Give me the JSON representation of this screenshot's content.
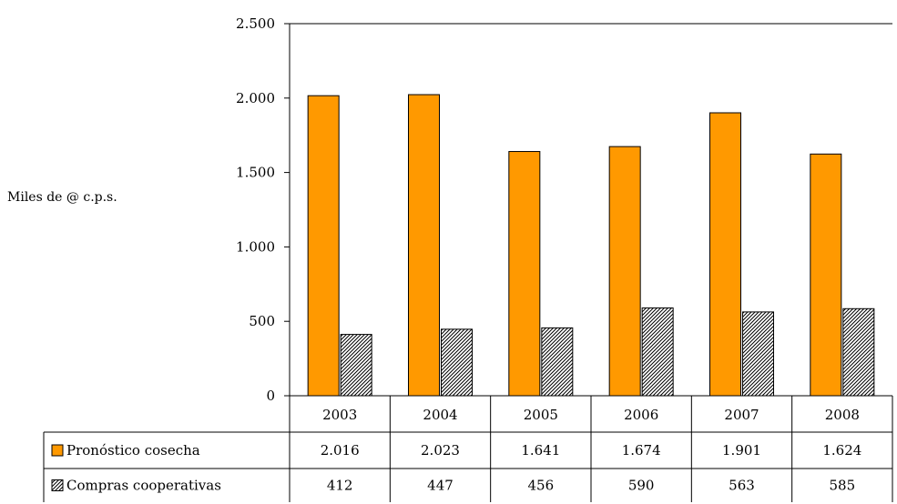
{
  "chart_data": {
    "type": "bar",
    "ylabel": "Miles de @ c.p.s.",
    "ylim": [
      0,
      2500
    ],
    "yticks": [
      0,
      500,
      1000,
      1500,
      2000,
      2500
    ],
    "ytick_labels": [
      "0",
      "500",
      "1.000",
      "1.500",
      "2.000",
      "2.500"
    ],
    "categories": [
      "2003",
      "2004",
      "2005",
      "2006",
      "2007",
      "2008"
    ],
    "grid": false,
    "legend": "data-table",
    "series": [
      {
        "name": "Pronóstico cosecha",
        "values": [
          2016,
          2023,
          1641,
          1674,
          1901,
          1624
        ],
        "labels": [
          "2.016",
          "2.023",
          "1.641",
          "1.674",
          "1.901",
          "1.624"
        ],
        "color": "#FF9900",
        "pattern": "solid"
      },
      {
        "name": "Compras cooperativas",
        "values": [
          412,
          447,
          456,
          590,
          563,
          585
        ],
        "labels": [
          "412",
          "447",
          "456",
          "590",
          "563",
          "585"
        ],
        "color": "#000000",
        "pattern": "diagonal-hatch"
      }
    ]
  }
}
